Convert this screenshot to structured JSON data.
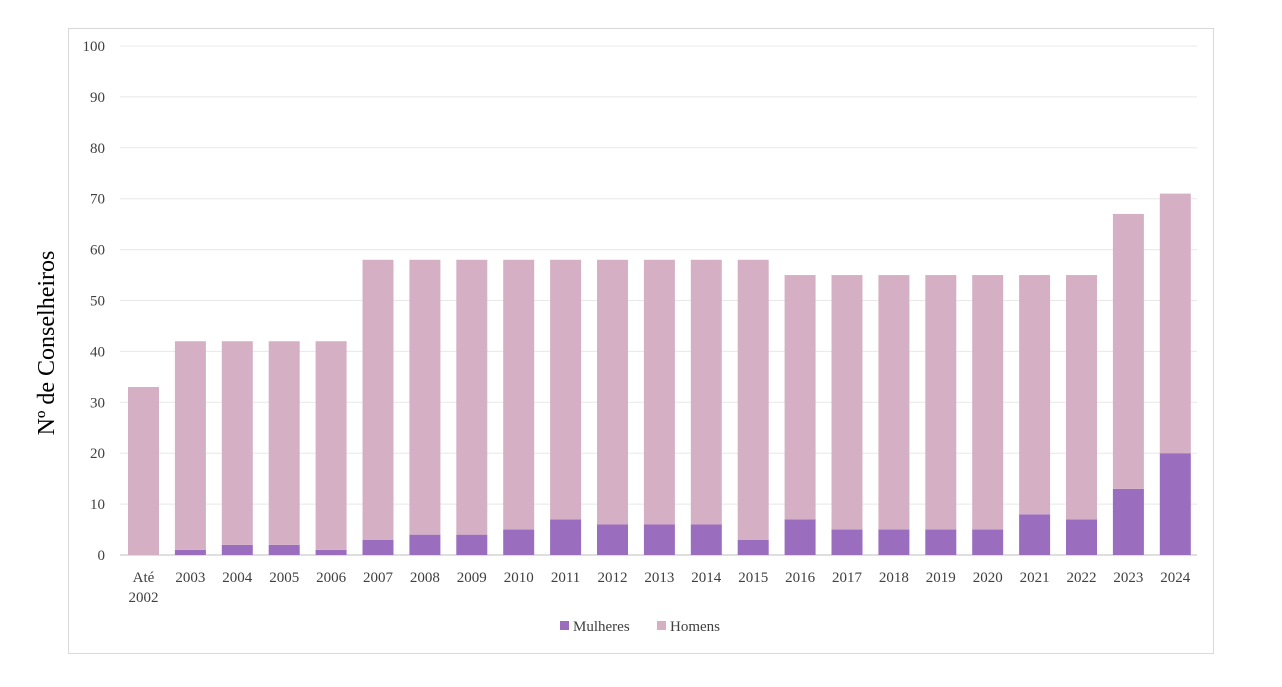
{
  "chart_data": {
    "type": "bar",
    "stacked": true,
    "categories": [
      "Até 2002",
      "2003",
      "2004",
      "2005",
      "2006",
      "2007",
      "2008",
      "2009",
      "2010",
      "2011",
      "2012",
      "2013",
      "2014",
      "2015",
      "2016",
      "2017",
      "2018",
      "2019",
      "2020",
      "2021",
      "2022",
      "2023",
      "2024"
    ],
    "category_lines": [
      [
        "Até",
        "2002"
      ],
      [
        "2003"
      ],
      [
        "2004"
      ],
      [
        "2005"
      ],
      [
        "2006"
      ],
      [
        "2007"
      ],
      [
        "2008"
      ],
      [
        "2009"
      ],
      [
        "2010"
      ],
      [
        "2011"
      ],
      [
        "2012"
      ],
      [
        "2013"
      ],
      [
        "2014"
      ],
      [
        "2015"
      ],
      [
        "2016"
      ],
      [
        "2017"
      ],
      [
        "2018"
      ],
      [
        "2019"
      ],
      [
        "2020"
      ],
      [
        "2021"
      ],
      [
        "2022"
      ],
      [
        "2023"
      ],
      [
        "2024"
      ]
    ],
    "series": [
      {
        "name": "Mulheres",
        "color": "#9b6dbf",
        "values": [
          0,
          1,
          2,
          2,
          1,
          3,
          4,
          4,
          5,
          7,
          6,
          6,
          6,
          3,
          7,
          5,
          5,
          5,
          5,
          8,
          7,
          13,
          20
        ]
      },
      {
        "name": "Homens",
        "color": "#d5b0c4",
        "values": [
          33,
          41,
          40,
          40,
          41,
          55,
          54,
          54,
          53,
          51,
          52,
          52,
          52,
          55,
          48,
          50,
          50,
          50,
          50,
          47,
          48,
          54,
          51
        ]
      }
    ],
    "title": "",
    "xlabel": "",
    "ylabel": "Nº de Conselheiros",
    "ylim": [
      0,
      100
    ],
    "yticks": [
      "0",
      "10",
      "20",
      "30",
      "40",
      "50",
      "60",
      "70",
      "80",
      "90",
      "100"
    ],
    "grid": true,
    "legend_position": "bottom"
  }
}
